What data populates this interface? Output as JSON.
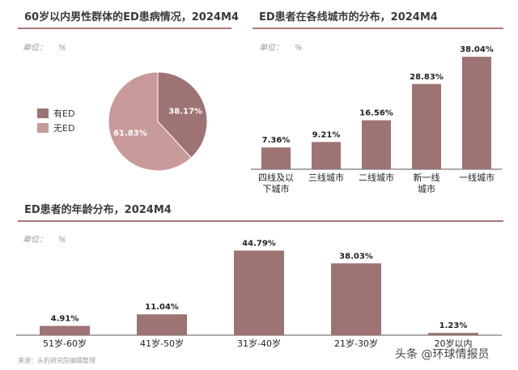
{
  "colors": {
    "bar": "#9e7374",
    "pie_has": "#9e7374",
    "pie_no": "#c99a9a",
    "axis": "#555555",
    "rule": "#a87a7a"
  },
  "chart_data": [
    {
      "type": "pie",
      "title": "60岁以内男性群体的ED患病情况，2024M4",
      "unit_label": "单位：",
      "unit_value": "%",
      "categories": [
        "有ED",
        "无ED"
      ],
      "values": [
        38.17,
        61.83
      ],
      "data_labels": [
        "38.17%",
        "61.83%"
      ],
      "legend_position": "left"
    },
    {
      "type": "bar",
      "title": "ED患者在各线城市的分布，2024M4",
      "unit_label": "单位：",
      "unit_value": "%",
      "categories": [
        [
          "四线及以",
          "下城市"
        ],
        [
          "三线城市"
        ],
        [
          "二线城市"
        ],
        [
          "新一线",
          "城市"
        ],
        [
          "一线城市"
        ]
      ],
      "values": [
        7.36,
        9.21,
        16.56,
        28.83,
        38.04
      ],
      "data_labels": [
        "7.36%",
        "9.21%",
        "16.56%",
        "28.83%",
        "38.04%"
      ],
      "ylim": [
        0,
        40
      ]
    },
    {
      "type": "bar",
      "title": "ED患者的年龄分布，2024M4",
      "unit_label": "单位：",
      "unit_value": "%",
      "categories": [
        [
          "51岁-60岁"
        ],
        [
          "41岁-50岁"
        ],
        [
          "31岁-40岁"
        ],
        [
          "21岁-30岁"
        ],
        [
          "20岁以内"
        ]
      ],
      "values": [
        4.91,
        11.04,
        44.79,
        38.03,
        1.23
      ],
      "data_labels": [
        "4.91%",
        "11.04%",
        "44.79%",
        "38.03%",
        "1.23%"
      ],
      "ylim": [
        0,
        45
      ]
    }
  ],
  "footer": {
    "source": "来源：头豹研究院编辑整理",
    "watermark": "头条 @环球情报员"
  }
}
